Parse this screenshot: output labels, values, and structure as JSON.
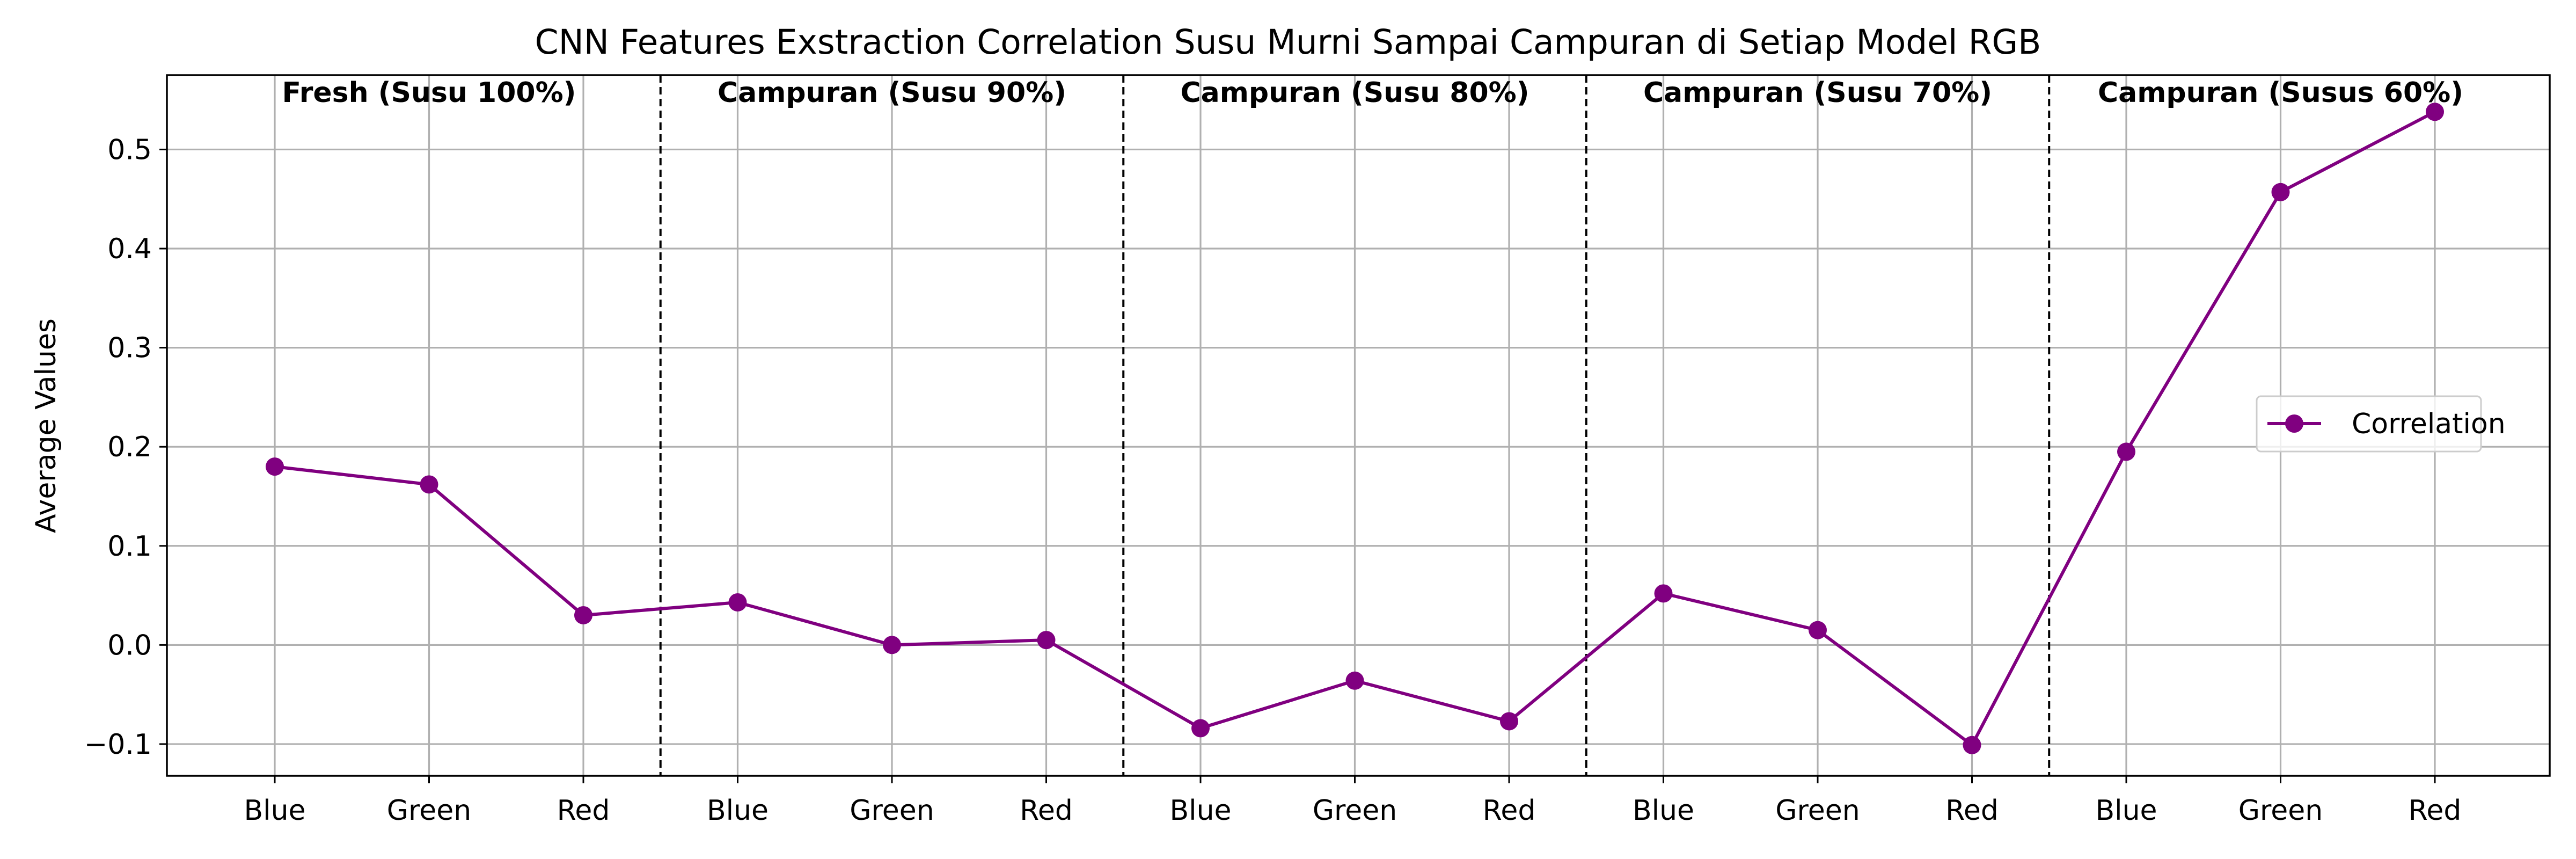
{
  "chart_data": {
    "type": "line",
    "title": "CNN Features Exstraction Correlation Susu Murni Sampai Campuran di Setiap Model RGB",
    "xlabel": "",
    "ylabel": "Average Values",
    "categories": [
      "Blue",
      "Green",
      "Red",
      "Blue",
      "Green",
      "Red",
      "Blue",
      "Green",
      "Red",
      "Blue",
      "Green",
      "Red",
      "Blue",
      "Green",
      "Red"
    ],
    "series": [
      {
        "name": "Correlation",
        "color": "#800080",
        "values": [
          0.18,
          0.162,
          0.03,
          0.043,
          0.0,
          0.005,
          -0.084,
          -0.036,
          -0.077,
          0.052,
          0.015,
          -0.101,
          0.195,
          0.457,
          0.538
        ]
      }
    ],
    "groups": [
      {
        "label": "Fresh (Susu 100%)",
        "start": 0,
        "end": 2
      },
      {
        "label": "Campuran (Susu 90%)",
        "start": 3,
        "end": 5
      },
      {
        "label": "Campuran (Susu 80%)",
        "start": 6,
        "end": 8
      },
      {
        "label": "Campuran (Susu 70%)",
        "start": 9,
        "end": 11
      },
      {
        "label": "Campuran (Susus 60%)",
        "start": 12,
        "end": 14
      }
    ],
    "ylim": [
      -0.132,
      0.575
    ],
    "yticks": [
      -0.1,
      0.0,
      0.1,
      0.2,
      0.3,
      0.4,
      0.5
    ],
    "ytick_labels": [
      "−0.1",
      "0.0",
      "0.1",
      "0.2",
      "0.3",
      "0.4",
      "0.5"
    ],
    "grid": true,
    "legend_position": "center-right"
  }
}
